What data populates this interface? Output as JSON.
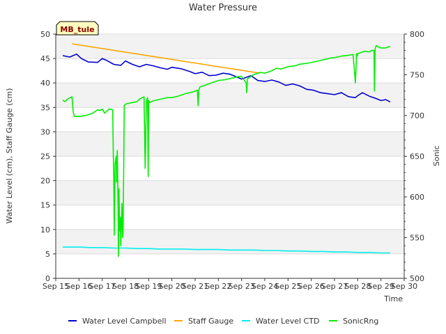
{
  "chart_data": {
    "type": "line",
    "title": "Water Pressure",
    "xlabel": "Time",
    "ylabel": "Water Level (cm), Staff Gauge (cm)",
    "y2label": "Sonic",
    "site_label": "MB_tule",
    "xlim": [
      15,
      30
    ],
    "ylim": [
      0,
      50
    ],
    "y2lim": [
      500,
      800
    ],
    "x_ticks": [
      15,
      16,
      17,
      18,
      19,
      20,
      21,
      22,
      23,
      24,
      25,
      26,
      27,
      28,
      29,
      30
    ],
    "x_tick_labels": [
      "Sep 15",
      "Sep 16",
      "Sep 17",
      "Sep 18",
      "Sep 19",
      "Sep 20",
      "Sep 21",
      "Sep 22",
      "Sep 23",
      "Sep 24",
      "Sep 25",
      "Sep 26",
      "Sep 27",
      "Sep 28",
      "Sep 29",
      "Sep 30"
    ],
    "y_ticks": [
      0,
      5,
      10,
      15,
      20,
      25,
      30,
      35,
      40,
      45,
      50
    ],
    "y_tick_labels": [
      "0",
      "5",
      "10",
      "15",
      "20",
      "25",
      "30",
      "35",
      "40",
      "45",
      "50"
    ],
    "y2_ticks": [
      500,
      550,
      600,
      650,
      700,
      750,
      800
    ],
    "y2_tick_labels": [
      "500",
      "550",
      "600",
      "650",
      "700",
      "750",
      "800"
    ],
    "legend_position": "bottom",
    "series": [
      {
        "name": "Water Level Campbell",
        "axis": "left",
        "color": "#0000cc",
        "x": [
          15.3,
          15.6,
          15.9,
          16.1,
          16.4,
          16.8,
          17.0,
          17.2,
          17.5,
          17.8,
          18.0,
          18.3,
          18.6,
          18.9,
          19.2,
          19.5,
          19.8,
          20.0,
          20.4,
          20.8,
          21.0,
          21.3,
          21.6,
          21.9,
          22.2,
          22.5,
          22.8,
          23.0,
          23.4,
          23.7,
          24.0,
          24.3,
          24.6,
          24.9,
          25.2,
          25.5,
          25.8,
          26.1,
          26.4,
          26.7,
          27.0,
          27.3,
          27.6,
          27.9,
          28.0,
          28.2,
          28.5,
          28.8,
          29.0,
          29.2,
          29.4
        ],
        "y": [
          45.6,
          45.3,
          45.9,
          45.0,
          44.3,
          44.2,
          45.0,
          44.6,
          43.8,
          43.6,
          44.5,
          43.8,
          43.3,
          43.8,
          43.5,
          43.1,
          42.8,
          43.2,
          42.9,
          42.3,
          41.9,
          42.2,
          41.5,
          41.6,
          42.0,
          41.8,
          41.2,
          40.8,
          41.5,
          40.5,
          40.3,
          40.6,
          40.2,
          39.5,
          39.8,
          39.4,
          38.7,
          38.5,
          38.0,
          37.8,
          37.6,
          38.0,
          37.2,
          37.0,
          37.4,
          38.0,
          37.3,
          36.8,
          36.4,
          36.6,
          36.1
        ]
      },
      {
        "name": "Staff Gauge",
        "axis": "left",
        "color": "#ffa500",
        "x": [
          15.7,
          23.8
        ],
        "y": [
          48.0,
          42.0
        ]
      },
      {
        "name": "Water Level CTD",
        "axis": "left",
        "color": "#00eeee",
        "x": [
          15.3,
          16.0,
          16.5,
          17.0,
          17.5,
          18.0,
          18.5,
          19.0,
          19.5,
          20.0,
          20.5,
          21.0,
          21.5,
          22.0,
          22.5,
          23.0,
          23.5,
          24.0,
          24.5,
          25.0,
          25.5,
          26.0,
          26.5,
          27.0,
          27.5,
          28.0,
          28.5,
          29.0,
          29.4
        ],
        "y": [
          6.4,
          6.4,
          6.3,
          6.3,
          6.2,
          6.2,
          6.1,
          6.1,
          6.0,
          6.0,
          6.0,
          5.9,
          5.9,
          5.9,
          5.8,
          5.8,
          5.8,
          5.7,
          5.7,
          5.6,
          5.6,
          5.5,
          5.5,
          5.4,
          5.4,
          5.3,
          5.3,
          5.2,
          5.2
        ]
      },
      {
        "name": "SonicRng",
        "axis": "right",
        "color": "#00ee00",
        "x": [
          15.3,
          15.4,
          15.5,
          15.7,
          15.75,
          15.8,
          16.0,
          16.3,
          16.5,
          16.6,
          16.8,
          16.9,
          17.0,
          17.1,
          17.3,
          17.45,
          17.48,
          17.5,
          17.52,
          17.55,
          17.6,
          17.62,
          17.65,
          17.68,
          17.7,
          17.72,
          17.75,
          17.78,
          17.8,
          17.82,
          17.85,
          17.88,
          17.9,
          17.95,
          18.0,
          18.3,
          18.5,
          18.6,
          18.8,
          18.85,
          18.9,
          18.95,
          18.98,
          19.0,
          19.02,
          19.05,
          19.2,
          19.5,
          19.8,
          20.0,
          20.3,
          20.6,
          20.9,
          21.0,
          21.1,
          21.13,
          21.16,
          21.2,
          21.5,
          21.8,
          22.0,
          22.3,
          22.6,
          22.9,
          23.0,
          23.2,
          23.22,
          23.25,
          23.3,
          23.5,
          23.8,
          24.0,
          24.3,
          24.5,
          24.7,
          25.0,
          25.3,
          25.5,
          25.8,
          26.0,
          26.3,
          26.6,
          26.9,
          27.0,
          27.3,
          27.6,
          27.8,
          27.9,
          27.95,
          27.98,
          28.0,
          28.3,
          28.5,
          28.6,
          28.7,
          28.72,
          28.75,
          28.8,
          28.9,
          29.0,
          29.2,
          29.4
        ],
        "y": [
          719,
          717,
          720,
          723,
          705,
          699,
          699,
          700,
          702,
          703,
          707,
          706,
          708,
          703,
          708,
          707,
          647,
          620,
          553,
          640,
          650,
          618,
          657,
          600,
          527,
          610,
          558,
          575,
          540,
          560,
          592,
          550,
          560,
          712,
          714,
          716,
          717,
          720,
          723,
          635,
          718,
          722,
          625,
          718,
          718,
          716,
          718,
          720,
          722,
          722,
          724,
          727,
          729,
          730,
          731,
          712,
          731,
          735,
          738,
          741,
          743,
          744,
          746,
          748,
          748,
          740,
          728,
          745,
          746,
          750,
          753,
          752,
          755,
          758,
          757,
          760,
          761,
          763,
          764,
          765,
          767,
          769,
          771,
          771,
          773,
          774,
          775,
          740,
          776,
          773,
          776,
          779,
          778,
          780,
          780,
          730,
          782,
          786,
          784,
          783,
          783,
          785
        ]
      }
    ]
  }
}
